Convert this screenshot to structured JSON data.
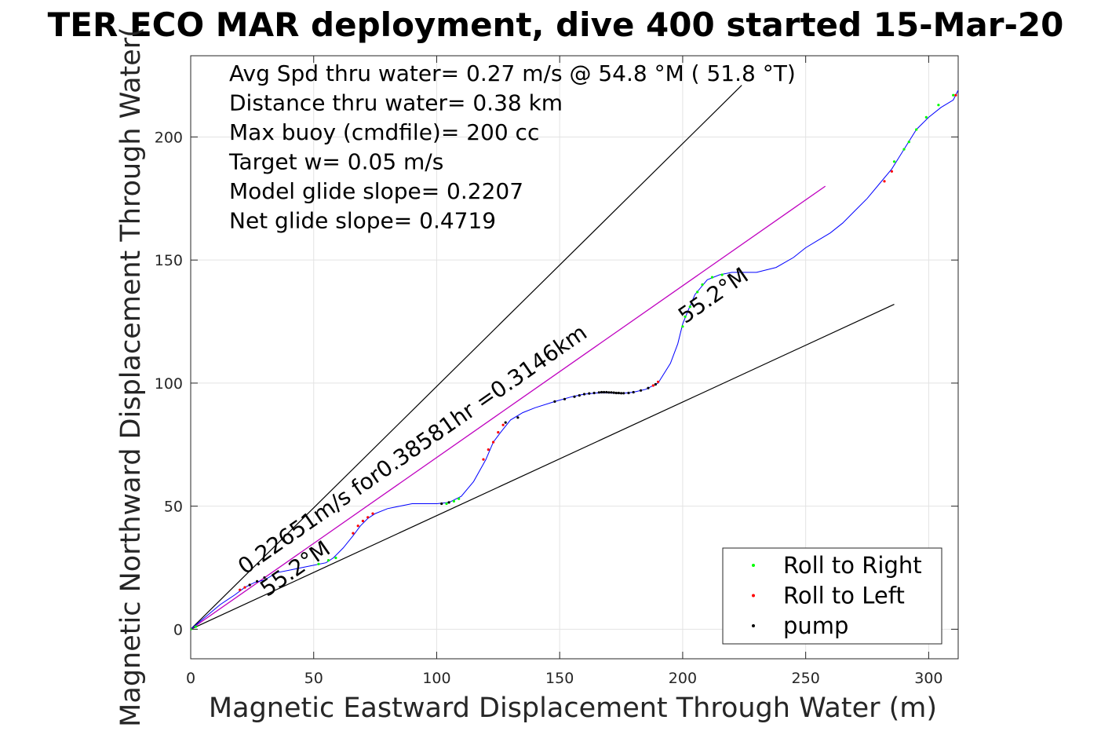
{
  "chart_data": {
    "type": "line",
    "title": "TER ECO MAR deployment, dive 400 started 15-Mar-20",
    "xlabel": "Magnetic Eastward Displacement Through Water (m)",
    "ylabel": "Magnetic Northward Displacement Through Water(",
    "xlim": [
      0,
      312
    ],
    "ylim": [
      -12,
      233
    ],
    "xticks": [
      0,
      50,
      100,
      150,
      200,
      250,
      300
    ],
    "yticks": [
      0,
      50,
      100,
      150,
      200
    ],
    "grid": true,
    "legend_position": "bottom-right",
    "info_lines": [
      "Avg Spd thru water=  0.27 m/s @  54.8 °M ( 51.8 °T)",
      "Distance thru water=  0.38 km",
      "Max buoy (cmdfile)= 200 cc",
      "Target w= 0.05 m/s",
      "Model glide slope= 0.2207",
      "Net glide slope= 0.4719"
    ],
    "annotations": [
      {
        "text": "0.22651m/s for0.38581hr =0.3146km",
        "x": 22,
        "y": 22,
        "angle": 34.8
      },
      {
        "text": "55.2°M",
        "x": 31,
        "y": 13,
        "angle": 34.8
      },
      {
        "text": "55.2°M",
        "x": 201,
        "y": 124,
        "angle": 34.8
      }
    ],
    "colors": {
      "track": "#0000ff",
      "heading_line": "#bf00bf",
      "bounds": "#000000",
      "roll_right": "#00ff00",
      "roll_left": "#ff0000",
      "pump": "#000000"
    },
    "legend": [
      {
        "label": "Roll to Right",
        "color": "#00ff00"
      },
      {
        "label": "Roll to Left",
        "color": "#ff0000"
      },
      {
        "label": "pump",
        "color": "#000000"
      }
    ],
    "heading_line": {
      "x": [
        0,
        258
      ],
      "y": [
        0,
        180
      ]
    },
    "bound_upper": {
      "x": [
        0,
        224
      ],
      "y": [
        0,
        221
      ]
    },
    "bound_lower": {
      "x": [
        0,
        286
      ],
      "y": [
        0,
        132
      ]
    },
    "series": [
      {
        "x": [
          0,
          6,
          12,
          18,
          22,
          26,
          30,
          35,
          40,
          45,
          50,
          55,
          58,
          62,
          66,
          69,
          72,
          75,
          80,
          85,
          90,
          95,
          100,
          105,
          110,
          115,
          120,
          123,
          126,
          130,
          135,
          140,
          148,
          155,
          160,
          165,
          170,
          175,
          180,
          185,
          190,
          195,
          198,
          200,
          202,
          205,
          210,
          215,
          220,
          230,
          238,
          245,
          250,
          255,
          260,
          265,
          270,
          275,
          280,
          285,
          290,
          295,
          300,
          305,
          310,
          312
        ],
        "y": [
          0,
          5,
          10,
          14,
          17,
          19,
          20,
          23,
          24,
          25,
          26,
          27,
          29,
          33,
          38,
          42,
          45,
          47,
          49,
          50,
          51,
          51,
          51,
          51.5,
          54,
          60,
          69,
          76,
          80,
          85,
          88,
          90,
          92.5,
          94.5,
          95.5,
          96,
          96,
          95.8,
          96.3,
          97.5,
          100,
          108,
          116,
          124,
          129,
          136,
          142,
          144,
          145,
          145,
          147,
          151,
          155,
          158,
          161,
          165,
          170,
          175,
          181,
          187,
          195,
          203,
          208,
          212,
          215,
          219
        ]
      }
    ],
    "roll_right": {
      "x": [
        0,
        2,
        52,
        56,
        59,
        104,
        107,
        109,
        200,
        201,
        203,
        206,
        208,
        212,
        216,
        286,
        290,
        292,
        295,
        299,
        304,
        310
      ],
      "y": [
        0,
        1,
        26.5,
        28,
        29,
        51,
        52,
        53,
        123,
        127,
        131,
        137,
        140,
        143,
        144,
        190,
        195,
        198,
        203,
        208,
        213,
        217
      ]
    },
    "roll_left": {
      "x": [
        20,
        22,
        24,
        66,
        68,
        70,
        72,
        74,
        119,
        121,
        123,
        125,
        127,
        188,
        190,
        282,
        285,
        311
      ],
      "y": [
        16,
        17,
        18,
        39,
        42,
        44,
        45.5,
        47,
        69,
        73,
        76,
        80,
        83,
        99,
        100.5,
        182,
        186,
        217
      ]
    },
    "pump": {
      "x": [
        24,
        27,
        30,
        102,
        105,
        128,
        133,
        148,
        152,
        156,
        158,
        160,
        162,
        164,
        166,
        167,
        168,
        169,
        170,
        171,
        172,
        173,
        174,
        175,
        176,
        178,
        180,
        183,
        186,
        189
      ],
      "y": [
        18,
        19.5,
        21,
        51,
        51.5,
        84,
        86,
        92.5,
        93.5,
        94.5,
        95,
        95.5,
        95.8,
        96,
        96.2,
        96.3,
        96.3,
        96.3,
        96.2,
        96.2,
        96.1,
        96,
        96,
        95.9,
        95.9,
        96,
        96.3,
        97,
        98,
        99.5
      ]
    }
  }
}
